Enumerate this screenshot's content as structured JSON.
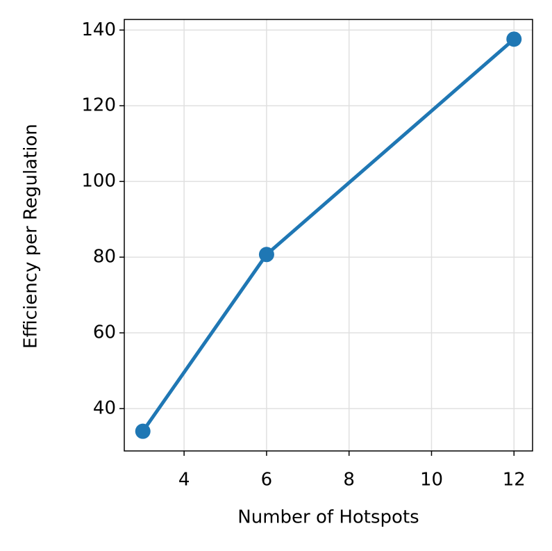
{
  "chart_data": {
    "type": "line",
    "x_label": "Number of Hotspots",
    "y_label": "Efficiency per Regulation",
    "x": [
      3,
      6,
      12
    ],
    "series": [
      {
        "color": "#1f77b4",
        "values": [
          34.0,
          80.7,
          137.6
        ]
      }
    ],
    "xlim": [
      2.55,
      12.45
    ],
    "xticks": [
      4,
      6,
      8,
      10,
      12
    ],
    "ylim": [
      28.8,
      142.8
    ],
    "yticks": [
      40,
      60,
      80,
      100,
      120,
      140
    ],
    "grid": true
  }
}
